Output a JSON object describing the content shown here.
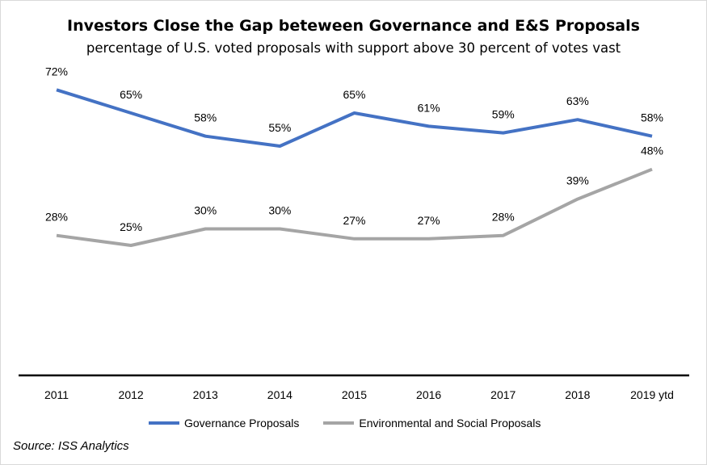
{
  "chart_data": {
    "type": "line",
    "title": "Investors Close the Gap beteween Governance and E&S Proposals",
    "subtitle": "percentage of U.S. voted proposals with support above 30 percent of votes vast",
    "categories": [
      "2011",
      "2012",
      "2013",
      "2014",
      "2015",
      "2016",
      "2017",
      "2018",
      "2019 ytd"
    ],
    "series": [
      {
        "name": "Governance Proposals",
        "color": "#4472c4",
        "values": [
          72,
          65,
          58,
          55,
          65,
          61,
          59,
          63,
          58
        ],
        "labels": [
          "72%",
          "65%",
          "58%",
          "55%",
          "65%",
          "61%",
          "59%",
          "63%",
          "58%"
        ]
      },
      {
        "name": "Environmental and Social Proposals",
        "color": "#a5a5a5",
        "values": [
          28,
          25,
          30,
          30,
          27,
          27,
          28,
          39,
          48
        ],
        "labels": [
          "28%",
          "25%",
          "30%",
          "30%",
          "27%",
          "27%",
          "28%",
          "39%",
          "48%"
        ]
      }
    ],
    "source": "Source: ISS Analytics",
    "grid": false,
    "legend_position": "bottom"
  }
}
